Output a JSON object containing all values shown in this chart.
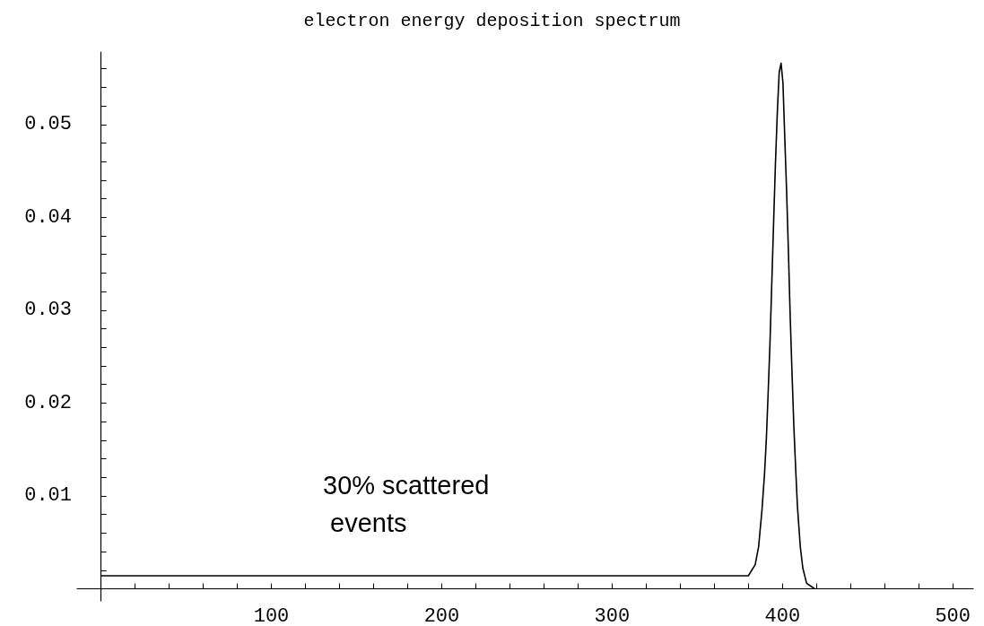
{
  "chart_data": {
    "type": "line",
    "title": "electron energy deposition spectrum",
    "annotations": [
      "30% scattered events"
    ],
    "series": [
      {
        "color": "#000000",
        "x": [
          0,
          380,
          384,
          386,
          388,
          389.5,
          390.6,
          391.6,
          392.7,
          393.8,
          394.9,
          395.9,
          397,
          398.1,
          399.2,
          400.3,
          401.3,
          402.4,
          403.5,
          404.5,
          405.6,
          406.7,
          407.8,
          408.8,
          410.5,
          412,
          414.2,
          417.4,
          419
        ],
        "values": [
          0.0014,
          0.0014,
          0.0026,
          0.0045,
          0.0085,
          0.0124,
          0.0163,
          0.021,
          0.0265,
          0.0332,
          0.0399,
          0.0458,
          0.0513,
          0.0556,
          0.0566,
          0.0545,
          0.049,
          0.0431,
          0.0364,
          0.0297,
          0.0234,
          0.0175,
          0.0128,
          0.0089,
          0.0045,
          0.0022,
          0.0006,
          0.0002,
          0
        ]
      }
    ],
    "xlim": [
      -14,
      512
    ],
    "ylim": [
      -0.0013,
      0.0578
    ],
    "xticks": [
      {
        "value": 20,
        "label": null
      },
      {
        "value": 40,
        "label": null
      },
      {
        "value": 60,
        "label": null
      },
      {
        "value": 80,
        "label": null
      },
      100,
      {
        "value": 120,
        "label": null
      },
      {
        "value": 140,
        "label": null
      },
      {
        "value": 160,
        "label": null
      },
      {
        "value": 180,
        "label": null
      },
      200,
      {
        "value": 220,
        "label": null
      },
      {
        "value": 240,
        "label": null
      },
      {
        "value": 260,
        "label": null
      },
      {
        "value": 280,
        "label": null
      },
      300,
      {
        "value": 320,
        "label": null
      },
      {
        "value": 340,
        "label": null
      },
      {
        "value": 360,
        "label": null
      },
      {
        "value": 380,
        "label": null
      },
      400,
      {
        "value": 420,
        "label": null
      },
      {
        "value": 440,
        "label": null
      },
      {
        "value": 460,
        "label": null
      },
      {
        "value": 480,
        "label": null
      },
      500
    ],
    "yticks": [
      {
        "value": 0.002,
        "label": null
      },
      {
        "value": 0.004,
        "label": null
      },
      {
        "value": 0.006,
        "label": null
      },
      {
        "value": 0.008,
        "label": null
      },
      0.01,
      {
        "value": 0.012,
        "label": null
      },
      {
        "value": 0.014,
        "label": null
      },
      {
        "value": 0.016,
        "label": null
      },
      {
        "value": 0.018,
        "label": null
      },
      0.02,
      {
        "value": 0.022,
        "label": null
      },
      {
        "value": 0.024,
        "label": null
      },
      {
        "value": 0.026,
        "label": null
      },
      {
        "value": 0.028,
        "label": null
      },
      0.03,
      {
        "value": 0.032,
        "label": null
      },
      {
        "value": 0.034,
        "label": null
      },
      {
        "value": 0.036,
        "label": null
      },
      {
        "value": 0.038,
        "label": null
      },
      0.04,
      {
        "value": 0.042,
        "label": null
      },
      {
        "value": 0.044,
        "label": null
      },
      {
        "value": 0.046,
        "label": null
      },
      {
        "value": 0.048,
        "label": null
      },
      0.05,
      {
        "value": 0.052,
        "label": null
      },
      {
        "value": 0.054,
        "label": null
      },
      {
        "value": 0.056,
        "label": null
      }
    ],
    "grid": false,
    "marker": "none",
    "line_style": "solid"
  }
}
